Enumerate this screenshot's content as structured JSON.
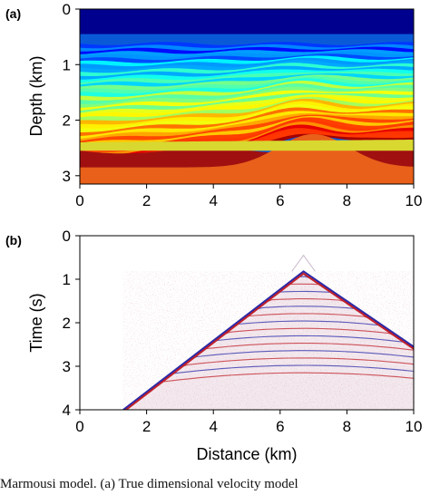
{
  "chart_data": [
    {
      "type": "heatmap",
      "panel_label": "(a)",
      "title": "",
      "xlabel": "",
      "ylabel": "Depth (km)",
      "xlim": [
        0,
        10
      ],
      "ylim": [
        3.15,
        0
      ],
      "x_ticks": [
        "0",
        "2",
        "4",
        "6",
        "8",
        "10"
      ],
      "y_ticks": [
        "0",
        "1",
        "2",
        "3"
      ],
      "colormap": "jet",
      "colors": {
        "low": "#00007f",
        "mid": "#7fff7f",
        "high": "#7f0000"
      },
      "grid": false,
      "water_depth_km": 0.45
    },
    {
      "type": "heatmap",
      "panel_label": "(b)",
      "title": "",
      "xlabel": "Distance (km)",
      "ylabel": "Time (s)",
      "xlim": [
        0,
        10
      ],
      "ylim": [
        4,
        0
      ],
      "x_ticks": [
        "0",
        "2",
        "4",
        "6",
        "8",
        "10"
      ],
      "y_ticks": [
        "0",
        "1",
        "2",
        "3",
        "4"
      ],
      "colormap": "seismic",
      "colors": {
        "negative": "#2a2aa8",
        "zero": "#ffffff",
        "positive": "#c0202a"
      },
      "grid": false,
      "source_position_km": 6.7,
      "direct_arrival_apex_s": 0.82,
      "direct_arrival_left_end": [
        1.3,
        4.0
      ],
      "direct_arrival_right_end": [
        10,
        2.55
      ]
    }
  ],
  "caption": "Marmousi model. (a) True dimensional velocity model"
}
